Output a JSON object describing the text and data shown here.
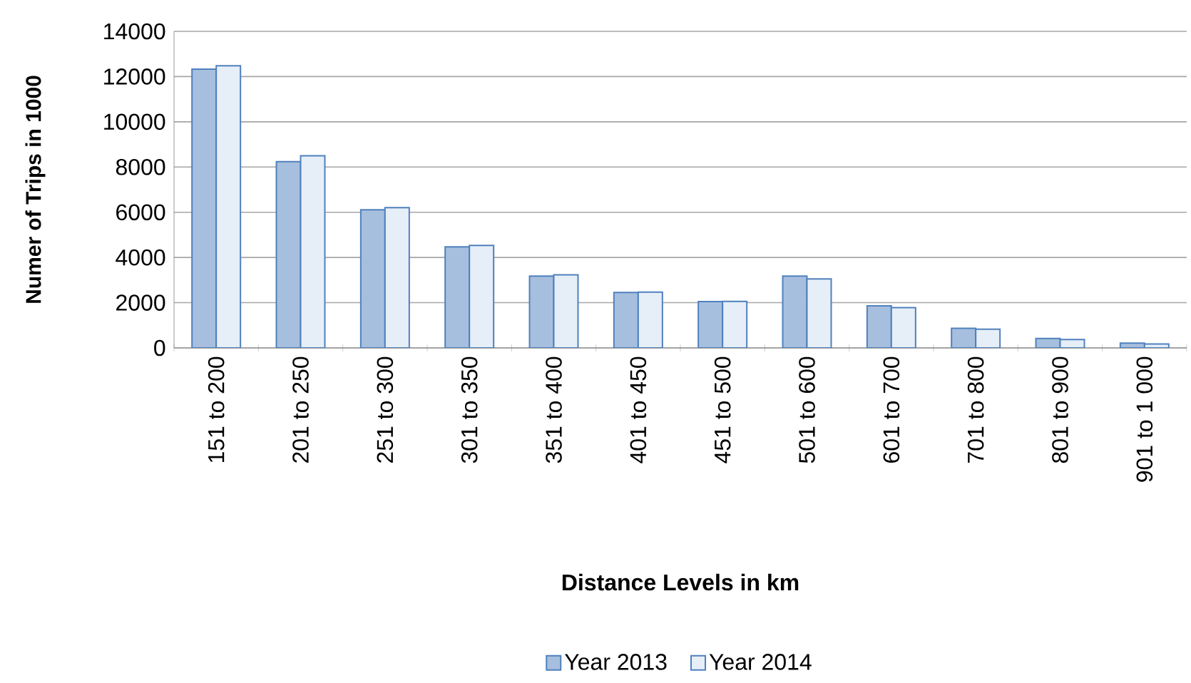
{
  "chart_data": {
    "type": "bar",
    "xlabel": "Distance Levels in km",
    "ylabel": "Numer of Trips in 1000",
    "categories": [
      "151 to 200",
      "201 to 250",
      "251 to 300",
      "301 to 350",
      "351 to 400",
      "401 to 450",
      "451 to 500",
      "501 to 600",
      "601 to 700",
      "701 to 800",
      "801 to 900",
      "901 to 1 000"
    ],
    "series": [
      {
        "name": "Year 2013",
        "color": "#a7bfde",
        "values": [
          12330,
          8240,
          6110,
          4470,
          3180,
          2450,
          2050,
          3180,
          1860,
          870,
          420,
          210
        ]
      },
      {
        "name": "Year 2014",
        "color": "#e6eef8",
        "values": [
          12480,
          8500,
          6200,
          4530,
          3230,
          2470,
          2060,
          3050,
          1780,
          830,
          370,
          170
        ]
      }
    ],
    "ylim": [
      0,
      14000
    ],
    "yticks": [
      0,
      2000,
      4000,
      6000,
      8000,
      10000,
      12000,
      14000
    ],
    "grid": "y",
    "legend": "bottom"
  }
}
